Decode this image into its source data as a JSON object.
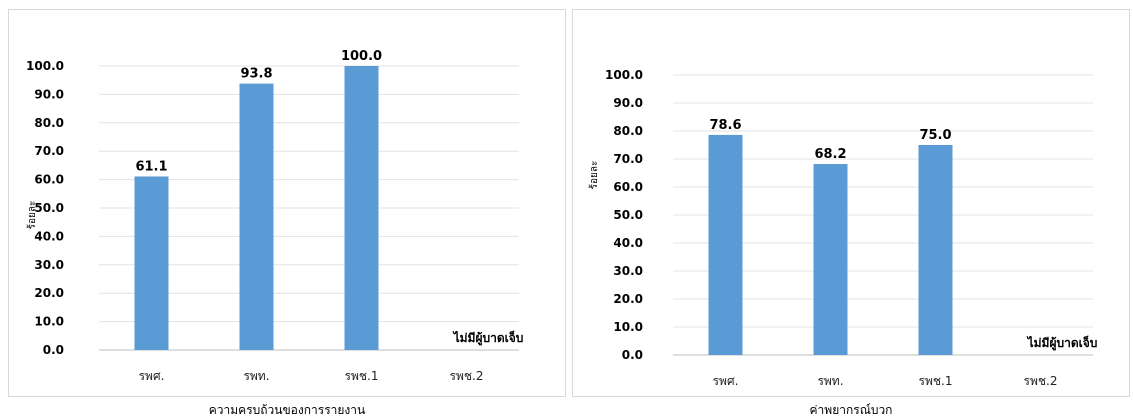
{
  "chart_data": [
    {
      "type": "bar",
      "categories": [
        "รพศ.",
        "รพท.",
        "รพช.1",
        "รพช.2"
      ],
      "values": [
        61.1,
        93.8,
        100.0,
        null
      ],
      "data_labels": [
        "61.1",
        "93.8",
        "100.0",
        ""
      ],
      "xlabel": "ความครบถ้วนของการรายงาน",
      "ylabel": "ร้อยละ",
      "ylim": [
        0,
        100
      ],
      "yticks": [
        "0.0",
        "10.0",
        "20.0",
        "30.0",
        "40.0",
        "50.0",
        "60.0",
        "70.0",
        "80.0",
        "90.0",
        "100.0"
      ],
      "annotation": "ไม่มีผู้บาดเจ็บ",
      "grid": true,
      "bar_color": "#5b9bd5"
    },
    {
      "type": "bar",
      "categories": [
        "รพศ.",
        "รพท.",
        "รพช.1",
        "รพช.2"
      ],
      "values": [
        78.6,
        68.2,
        75.0,
        null
      ],
      "data_labels": [
        "78.6",
        "68.2",
        "75.0",
        ""
      ],
      "xlabel": "ค่าพยากรณ์บวก",
      "ylabel": "ร้อยละ",
      "ylim": [
        0,
        100
      ],
      "yticks": [
        "0.0",
        "10.0",
        "20.0",
        "30.0",
        "40.0",
        "50.0",
        "60.0",
        "70.0",
        "80.0",
        "90.0",
        "100.0"
      ],
      "annotation": "ไม่มีผู้บาดเจ็บ",
      "grid": true,
      "bar_color": "#5b9bd5"
    }
  ]
}
